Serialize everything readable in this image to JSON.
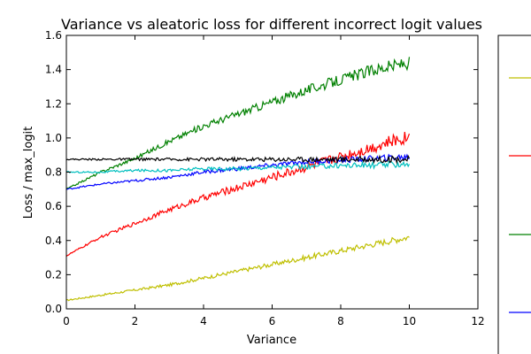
{
  "chart_data": {
    "type": "line",
    "title": "Variance vs aleatoric loss for different incorrect logit values",
    "xlabel": "Variance",
    "ylabel": "Loss / max_logit",
    "xlim": [
      0,
      12
    ],
    "ylim": [
      0,
      1.6
    ],
    "xticks": [
      0,
      2,
      4,
      6,
      8,
      10,
      12
    ],
    "yticks": [
      0.0,
      0.2,
      0.4,
      0.6,
      0.8,
      1.0,
      1.2,
      1.4,
      1.6
    ],
    "grid": false,
    "legend": {
      "placement": "right",
      "entries_visible_text": false
    },
    "x": [
      0,
      1,
      2,
      3,
      4,
      5,
      6,
      7,
      8,
      9,
      10
    ],
    "series": [
      {
        "color": "#bfbf00",
        "values": [
          0.05,
          0.08,
          0.11,
          0.14,
          0.18,
          0.22,
          0.26,
          0.3,
          0.34,
          0.38,
          0.42
        ]
      },
      {
        "color": "#ff0000",
        "values": [
          0.31,
          0.42,
          0.5,
          0.58,
          0.65,
          0.71,
          0.77,
          0.83,
          0.89,
          0.95,
          1.01
        ]
      },
      {
        "color": "#008000",
        "values": [
          0.7,
          0.8,
          0.88,
          0.98,
          1.07,
          1.14,
          1.21,
          1.28,
          1.34,
          1.4,
          1.44
        ]
      },
      {
        "color": "#0000ff",
        "values": [
          0.7,
          0.73,
          0.75,
          0.77,
          0.8,
          0.82,
          0.84,
          0.86,
          0.87,
          0.88,
          0.89
        ]
      },
      {
        "color": "#00bfbf",
        "values": [
          0.8,
          0.8,
          0.81,
          0.81,
          0.82,
          0.82,
          0.83,
          0.83,
          0.84,
          0.84,
          0.85
        ]
      },
      {
        "color": "#000000",
        "values": [
          0.875,
          0.875,
          0.875,
          0.875,
          0.875,
          0.875,
          0.875,
          0.875,
          0.875,
          0.875,
          0.875
        ]
      }
    ]
  }
}
